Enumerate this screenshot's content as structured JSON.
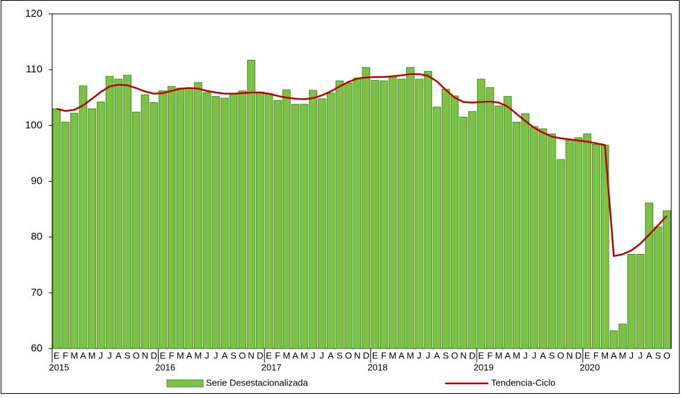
{
  "chart_data": {
    "type": "bar-line",
    "categories": [
      "E",
      "F",
      "M",
      "A",
      "M",
      "J",
      "J",
      "A",
      "S",
      "O",
      "N",
      "D",
      "E",
      "F",
      "M",
      "A",
      "M",
      "J",
      "J",
      "A",
      "S",
      "O",
      "N",
      "D",
      "E",
      "F",
      "M",
      "A",
      "M",
      "J",
      "J",
      "A",
      "S",
      "O",
      "N",
      "D",
      "E",
      "F",
      "M",
      "A",
      "M",
      "J",
      "J",
      "A",
      "S",
      "O",
      "N",
      "D",
      "E",
      "F",
      "M",
      "A",
      "M",
      "J",
      "J",
      "A",
      "S",
      "O",
      "N",
      "D",
      "E",
      "F",
      "M",
      "A",
      "M",
      "J",
      "J",
      "A",
      "S",
      "O"
    ],
    "years": [
      "2015",
      "2016",
      "2017",
      "2018",
      "2019",
      "2020"
    ],
    "series": [
      {
        "name": "Serie Desestacionalizada",
        "type": "bar",
        "color": "#7dc242",
        "values": [
          103.0,
          100.6,
          102.2,
          107.1,
          103.0,
          104.2,
          108.8,
          108.3,
          109.0,
          102.4,
          105.5,
          104.1,
          106.2,
          107.0,
          106.7,
          106.8,
          107.7,
          105.9,
          105.2,
          104.9,
          105.6,
          106.2,
          111.7,
          106.0,
          105.7,
          104.5,
          106.4,
          103.8,
          103.8,
          106.3,
          104.8,
          105.8,
          108.0,
          107.6,
          108.5,
          110.4,
          108.1,
          108.0,
          108.8,
          108.3,
          110.4,
          108.3,
          109.7,
          103.3,
          106.5,
          105.3,
          101.5,
          102.5,
          108.3,
          106.8,
          103.5,
          105.2,
          100.6,
          102.1,
          99.8,
          99.4,
          98.5,
          93.9,
          97.4,
          97.8,
          98.5,
          96.6,
          96.5,
          63.2,
          64.4,
          76.9,
          76.9,
          86.1,
          81.8,
          84.7
        ]
      },
      {
        "name": "Tendencia-Ciclo",
        "type": "line",
        "color": "#c00000",
        "values": [
          103.0,
          102.6,
          102.8,
          103.6,
          104.8,
          106.0,
          107.0,
          107.3,
          107.2,
          106.7,
          106.1,
          105.7,
          105.8,
          106.2,
          106.6,
          106.7,
          106.6,
          106.2,
          105.9,
          105.7,
          105.7,
          105.8,
          105.9,
          105.9,
          105.7,
          105.3,
          105.0,
          104.8,
          104.7,
          104.9,
          105.4,
          106.1,
          107.0,
          107.8,
          108.4,
          108.6,
          108.7,
          108.7,
          108.8,
          109.0,
          109.2,
          109.2,
          108.9,
          107.9,
          106.4,
          105.0,
          104.2,
          104.1,
          104.2,
          104.3,
          104.1,
          103.4,
          102.1,
          100.8,
          99.6,
          98.7,
          98.0,
          97.7,
          97.5,
          97.3,
          97.1,
          96.8,
          96.5,
          76.6,
          76.9,
          77.6,
          78.8,
          80.4,
          82.1,
          83.8
        ]
      }
    ],
    "ylim": [
      60,
      120
    ],
    "yticks": [
      60,
      70,
      80,
      90,
      100,
      110,
      120
    ],
    "grid": false
  }
}
